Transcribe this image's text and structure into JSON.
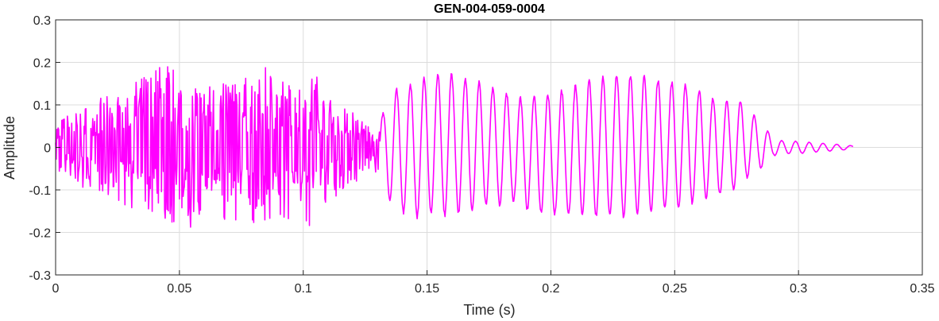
{
  "chart_data": {
    "type": "line",
    "title": "GEN-004-059-0004",
    "xlabel": "Time (s)",
    "ylabel": "Amplitude",
    "xlim": [
      0,
      0.35
    ],
    "ylim": [
      -0.3,
      0.3
    ],
    "x_ticks": [
      0,
      0.05,
      0.1,
      0.15,
      0.2,
      0.25,
      0.3,
      0.35
    ],
    "x_tick_labels": [
      "0",
      "0.05",
      "0.1",
      "0.15",
      "0.2",
      "0.25",
      "0.3",
      "0.35"
    ],
    "y_ticks": [
      -0.3,
      -0.2,
      -0.1,
      0,
      0.1,
      0.2,
      0.3
    ],
    "y_tick_labels": [
      "-0.3",
      "-0.2",
      "-0.1",
      "0",
      "0.1",
      "0.2",
      "0.3"
    ],
    "grid": true,
    "line_color": "#ff00ff",
    "series": [
      {
        "x": [
          0,
          0.005,
          0.01,
          0.015,
          0.02,
          0.025,
          0.03,
          0.035,
          0.04,
          0.045,
          0.05,
          0.055,
          0.06,
          0.065,
          0.07,
          0.075,
          0.08,
          0.085,
          0.09,
          0.095,
          0.1,
          0.105,
          0.11,
          0.115,
          0.12,
          0.125,
          0.13,
          0.135,
          0.14,
          0.145,
          0.15,
          0.155,
          0.16,
          0.165,
          0.17,
          0.175,
          0.18,
          0.185,
          0.19,
          0.195,
          0.2,
          0.205,
          0.21,
          0.215,
          0.22,
          0.225,
          0.23,
          0.235,
          0.24,
          0.245,
          0.25,
          0.255,
          0.26,
          0.265,
          0.27,
          0.275,
          0.28,
          0.285,
          0.29,
          0.295,
          0.3,
          0.305,
          0.31,
          0.315,
          0.32,
          0.322
        ],
        "envelope_upper": [
          0.06,
          0.08,
          0.1,
          0.11,
          0.12,
          0.13,
          0.15,
          0.17,
          0.19,
          0.21,
          0.18,
          0.17,
          0.15,
          0.16,
          0.18,
          0.17,
          0.16,
          0.19,
          0.18,
          0.15,
          0.16,
          0.18,
          0.12,
          0.11,
          0.09,
          0.06,
          0.05,
          0.13,
          0.15,
          0.16,
          0.17,
          0.18,
          0.18,
          0.17,
          0.16,
          0.15,
          0.14,
          0.12,
          0.12,
          0.13,
          0.13,
          0.14,
          0.15,
          0.16,
          0.17,
          0.18,
          0.18,
          0.17,
          0.17,
          0.16,
          0.16,
          0.15,
          0.14,
          0.12,
          0.11,
          0.12,
          0.09,
          0.06,
          0.02,
          0.015,
          0.015,
          0.012,
          0.01,
          0.008,
          0.005,
          0.004
        ],
        "envelope_lower": [
          -0.07,
          -0.07,
          -0.09,
          -0.11,
          -0.12,
          -0.13,
          -0.14,
          -0.16,
          -0.18,
          -0.19,
          -0.18,
          -0.19,
          -0.18,
          -0.17,
          -0.17,
          -0.18,
          -0.18,
          -0.21,
          -0.19,
          -0.18,
          -0.18,
          -0.2,
          -0.13,
          -0.11,
          -0.09,
          -0.07,
          -0.06,
          -0.13,
          -0.16,
          -0.17,
          -0.16,
          -0.17,
          -0.16,
          -0.16,
          -0.15,
          -0.14,
          -0.14,
          -0.13,
          -0.15,
          -0.16,
          -0.16,
          -0.17,
          -0.16,
          -0.16,
          -0.17,
          -0.17,
          -0.17,
          -0.16,
          -0.16,
          -0.15,
          -0.15,
          -0.14,
          -0.13,
          -0.12,
          -0.11,
          -0.1,
          -0.07,
          -0.05,
          -0.02,
          -0.015,
          -0.015,
          -0.012,
          -0.01,
          -0.008,
          -0.005,
          -0.004
        ]
      }
    ]
  }
}
